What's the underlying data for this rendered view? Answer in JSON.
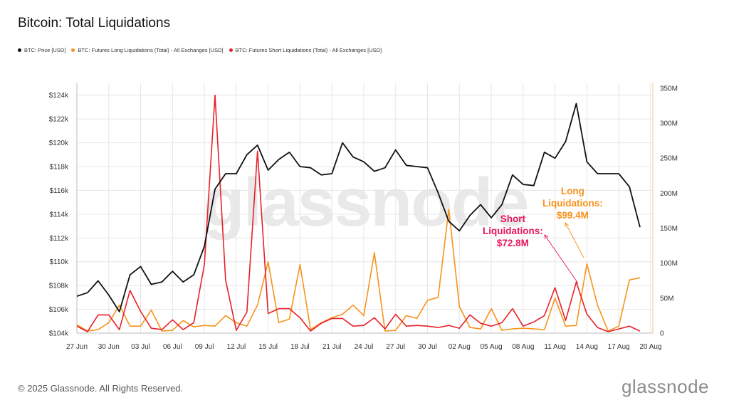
{
  "title": "Bitcoin: Total Liquidations",
  "watermark": "glassnode",
  "footer": "© 2025 Glassnode. All Rights Reserved.",
  "brand": "glassnode",
  "annotations": {
    "long": {
      "line1": "Long",
      "line2": "Liquidations:",
      "value": "$99.4M"
    },
    "short": {
      "line1": "Short",
      "line2": "Liquidations:",
      "value": "$72.8M"
    }
  },
  "colors": {
    "price": "#111111",
    "long": "#f7931a",
    "short": "#e8202a",
    "short_label": "#e8155c",
    "grid": "#e6e6e6"
  },
  "chart_data": {
    "type": "line",
    "legend_placement": "top-left",
    "grid": true,
    "x_tick_labels": [
      "27 Jun",
      "30 Jun",
      "03 Jul",
      "06 Jul",
      "09 Jul",
      "12 Jul",
      "15 Jul",
      "18 Jul",
      "21 Jul",
      "24 Jul",
      "27 Jul",
      "30 Jul",
      "02 Aug",
      "05 Aug",
      "08 Aug",
      "11 Aug",
      "14 Aug",
      "17 Aug",
      "20 Aug"
    ],
    "left_axis": {
      "ylim": [
        104000,
        125000
      ],
      "ticks": [
        104000,
        106000,
        108000,
        110000,
        112000,
        114000,
        116000,
        118000,
        120000,
        122000,
        124000
      ],
      "tick_labels": [
        "$104k",
        "$106k",
        "$108k",
        "$110k",
        "$112k",
        "$114k",
        "$116k",
        "$118k",
        "$120k",
        "$122k",
        "$124k"
      ]
    },
    "right_axis": {
      "ylim": [
        0,
        357
      ],
      "ticks": [
        0,
        50,
        100,
        150,
        200,
        250,
        300,
        350
      ],
      "tick_labels": [
        "0",
        "50M",
        "100M",
        "150M",
        "200M",
        "250M",
        "300M",
        "350M"
      ]
    },
    "series": [
      {
        "name": "BTC: Price [USD]",
        "axis": "left",
        "color_key": "price",
        "values": [
          107100,
          107400,
          108400,
          107200,
          105800,
          108900,
          109600,
          108100,
          108300,
          109200,
          108300,
          108900,
          111300,
          116100,
          117400,
          117400,
          119000,
          119800,
          117700,
          118600,
          119200,
          118000,
          117900,
          117300,
          117400,
          120000,
          118800,
          118400,
          117600,
          117900,
          119400,
          118100,
          118000,
          117900,
          115800,
          113400,
          112600,
          113900,
          114800,
          113700,
          114800,
          117300,
          116500,
          116400,
          119200,
          118700,
          120100,
          123300,
          118400,
          117400,
          117400,
          117400,
          116300,
          112900
        ]
      },
      {
        "name": "BTC: Futures Long Liquidations (Total) - All Exchanges [USD]",
        "axis": "right",
        "color_key": "long",
        "values": [
          12,
          3,
          5,
          15,
          40,
          10,
          10,
          33,
          3,
          4,
          18,
          9,
          11,
          10,
          25,
          15,
          10,
          40,
          102,
          15,
          20,
          98,
          5,
          15,
          22,
          27,
          40,
          25,
          115,
          3,
          4,
          25,
          21,
          47,
          51,
          177,
          38,
          8,
          6,
          35,
          4,
          6,
          7,
          6,
          5,
          50,
          10,
          11,
          99,
          40,
          3,
          10,
          76,
          79
        ]
      },
      {
        "name": "BTC: Futures Short Liquidations (Total) - All Exchanges [USD]",
        "axis": "right",
        "color_key": "short",
        "values": [
          10,
          2,
          26,
          26,
          5,
          61,
          31,
          7,
          5,
          19,
          5,
          15,
          98,
          340,
          76,
          4,
          30,
          260,
          28,
          35,
          35,
          22,
          3,
          14,
          21,
          21,
          10,
          11,
          22,
          6,
          27,
          10,
          11,
          10,
          8,
          11,
          7,
          26,
          14,
          10,
          15,
          35,
          10,
          16,
          25,
          65,
          18,
          73,
          27,
          8,
          2,
          6,
          10,
          3
        ]
      }
    ]
  }
}
